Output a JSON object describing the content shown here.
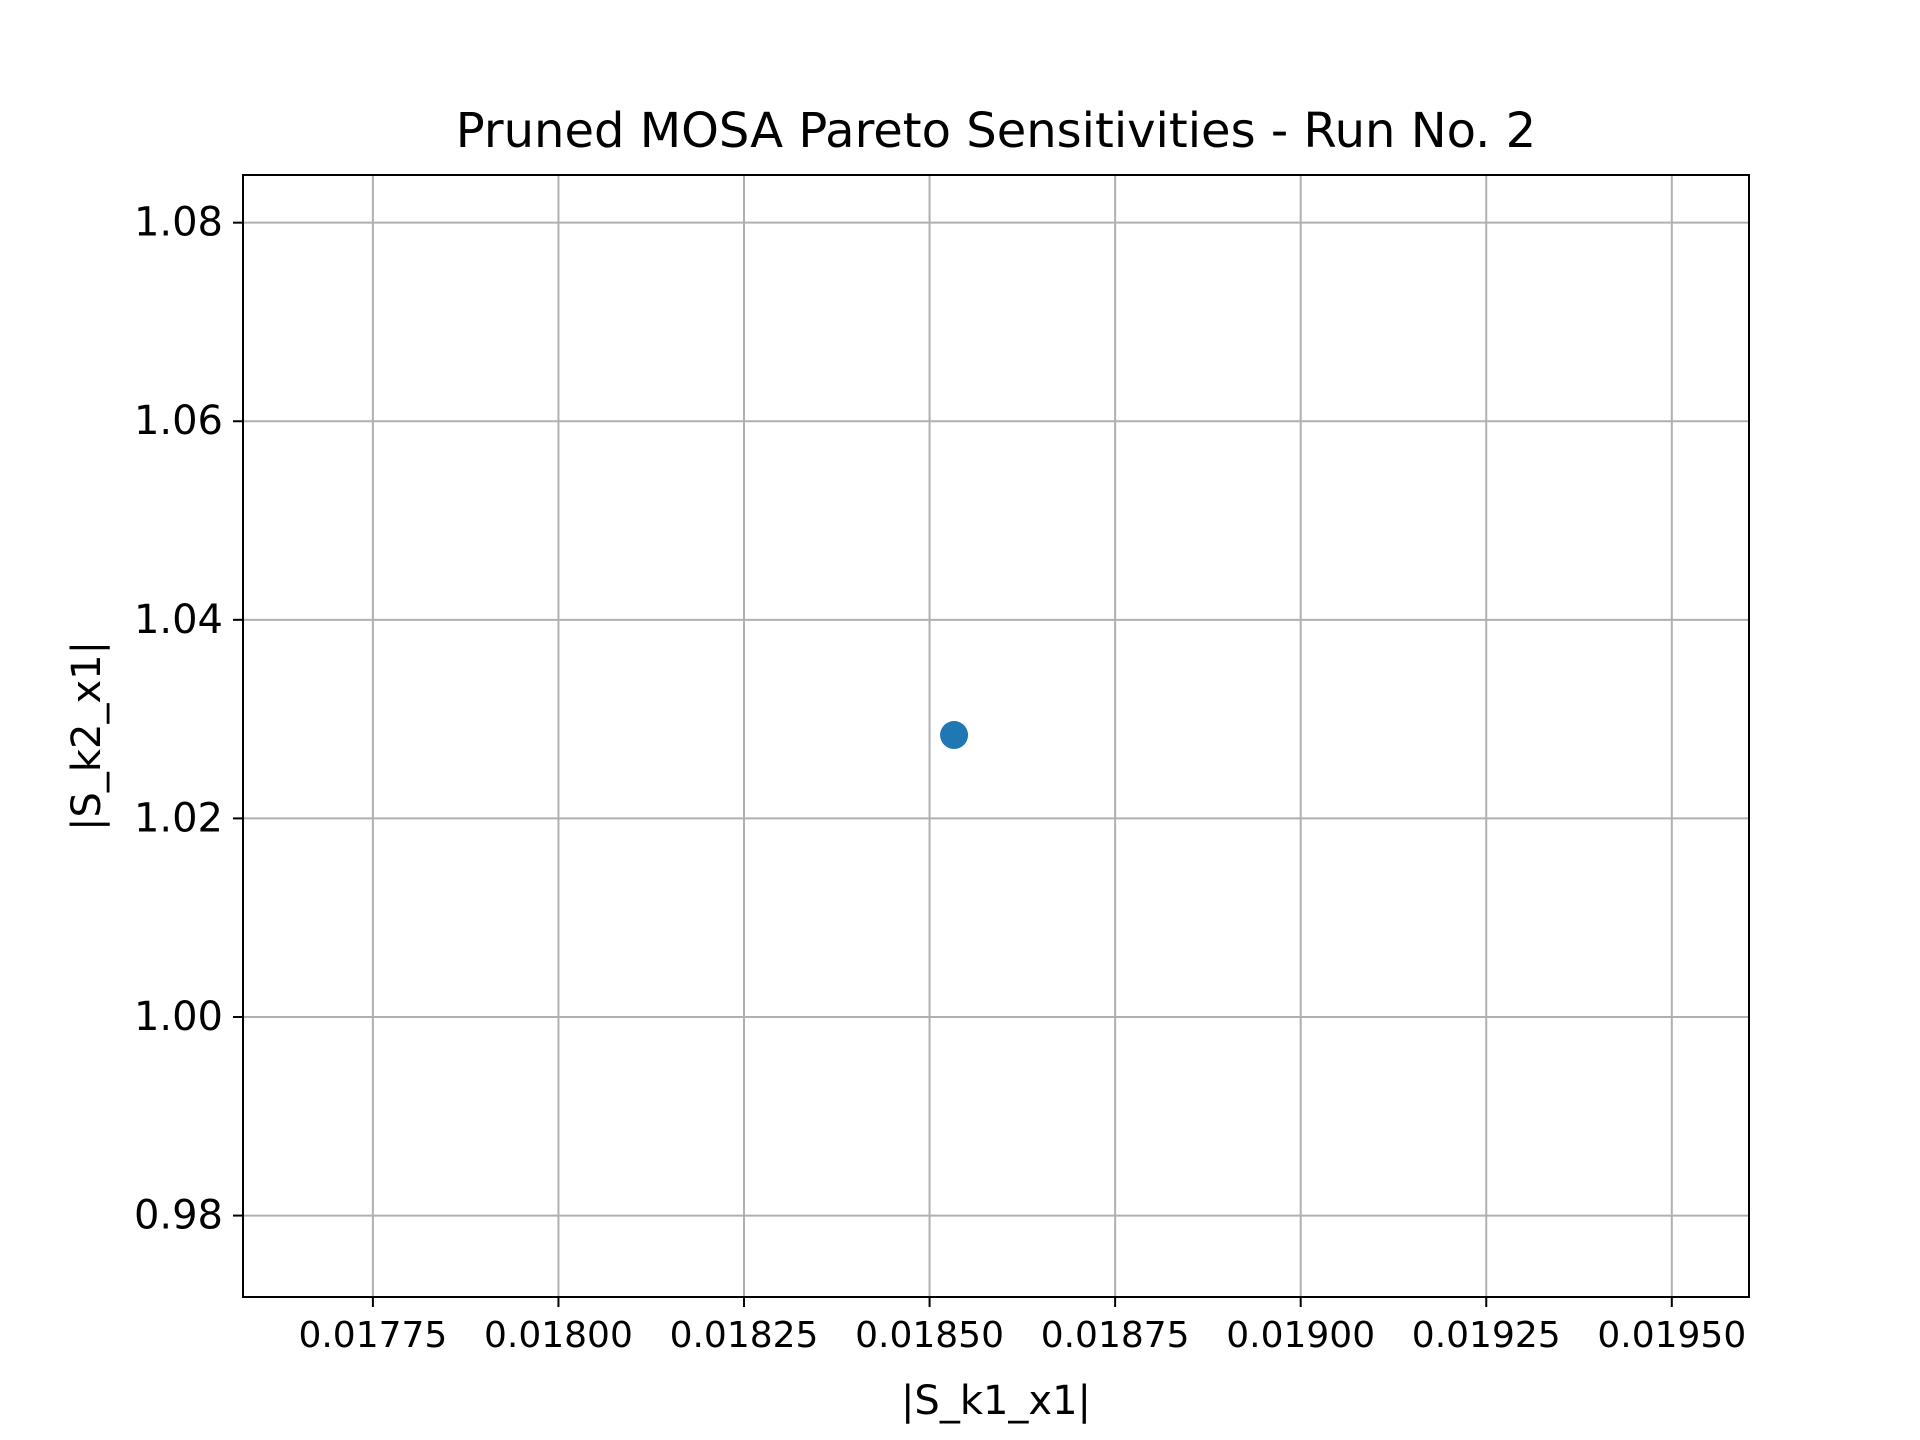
{
  "chart_data": {
    "type": "scatter",
    "title": "Pruned MOSA Pareto Sensitivities - Run No. 2",
    "xlabel": "|S_k1_x1|",
    "ylabel": "|S_k2_x1|",
    "xlim": [
      0.017575,
      0.019604
    ],
    "ylim": [
      0.9718,
      1.0848
    ],
    "x_ticks": [
      0.01775,
      0.018,
      0.01825,
      0.0185,
      0.01875,
      0.019,
      0.01925,
      0.0195
    ],
    "x_tick_labels": [
      "0.01775",
      "0.01800",
      "0.01825",
      "0.01850",
      "0.01875",
      "0.01900",
      "0.01925",
      "0.01950"
    ],
    "y_ticks": [
      0.98,
      1.0,
      1.02,
      1.04,
      1.06,
      1.08
    ],
    "y_tick_labels": [
      "0.98",
      "1.00",
      "1.02",
      "1.04",
      "1.06",
      "1.08"
    ],
    "grid": true,
    "series": [
      {
        "color": "#1f77b4",
        "points": [
          {
            "x": 0.018533,
            "y": 1.0284
          }
        ]
      }
    ]
  }
}
